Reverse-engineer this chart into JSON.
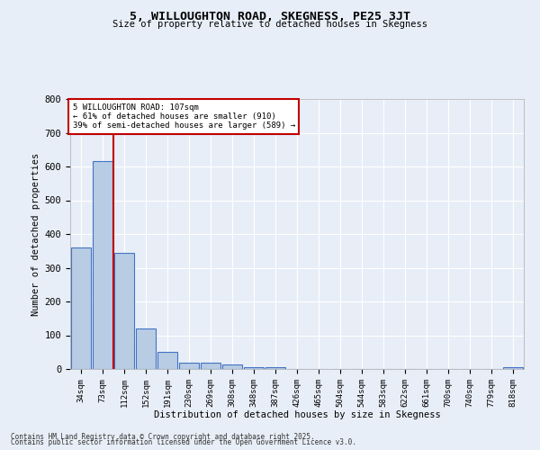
{
  "title": "5, WILLOUGHTON ROAD, SKEGNESS, PE25 3JT",
  "subtitle": "Size of property relative to detached houses in Skegness",
  "xlabel": "Distribution of detached houses by size in Skegness",
  "ylabel": "Number of detached properties",
  "categories": [
    "34sqm",
    "73sqm",
    "112sqm",
    "152sqm",
    "191sqm",
    "230sqm",
    "269sqm",
    "308sqm",
    "348sqm",
    "387sqm",
    "426sqm",
    "465sqm",
    "504sqm",
    "544sqm",
    "583sqm",
    "622sqm",
    "661sqm",
    "700sqm",
    "740sqm",
    "779sqm",
    "818sqm"
  ],
  "values": [
    360,
    615,
    345,
    120,
    50,
    20,
    18,
    13,
    5,
    5,
    0,
    0,
    0,
    0,
    0,
    0,
    0,
    0,
    0,
    0,
    5
  ],
  "bar_color": "#b8cce4",
  "bar_edge_color": "#4472c4",
  "highlight_line_color": "#c00000",
  "property_label": "5 WILLOUGHTON ROAD: 107sqm",
  "annotation_line1": "← 61% of detached houses are smaller (910)",
  "annotation_line2": "39% of semi-detached houses are larger (589) →",
  "annotation_box_color": "#c00000",
  "ylim": [
    0,
    800
  ],
  "yticks": [
    0,
    100,
    200,
    300,
    400,
    500,
    600,
    700,
    800
  ],
  "background_color": "#e8eef7",
  "grid_color": "#ffffff",
  "footnote1": "Contains HM Land Registry data © Crown copyright and database right 2025.",
  "footnote2": "Contains public sector information licensed under the Open Government Licence v3.0."
}
